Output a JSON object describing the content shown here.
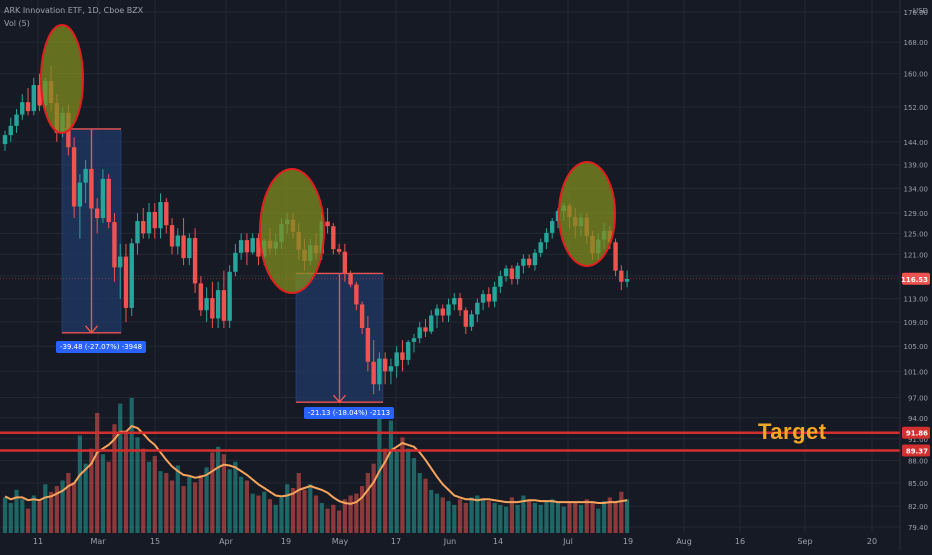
{
  "header": {
    "symbol_line": "ARK Innovation ETF, 1D, Cboe BZX",
    "indicator_line": "Vol (5)"
  },
  "colors": {
    "background": "#161a25",
    "grid": "#242833",
    "up": "#26a69a",
    "down": "#ef5350",
    "volume_ma": "#f7a45c",
    "target_line": "#d32f2f",
    "ellipse_fill": "#7f8e1e",
    "ellipse_stroke": "#e21f1f",
    "measure_fill": "#1f3a66",
    "label_bg": "#2962ff"
  },
  "chart_data": {
    "type": "candlestick",
    "currency": "USD",
    "price_scale": {
      "ticks": [
        79.4,
        82,
        85,
        88,
        91,
        94,
        97,
        101,
        105,
        109,
        113,
        117,
        121,
        125,
        129,
        134,
        139,
        144,
        152,
        160,
        168,
        176
      ],
      "tick_labels": [
        "79.40",
        "82.00",
        "85.00",
        "88.00",
        "91.00",
        "94.00",
        "97.00",
        "101.00",
        "105.00",
        "109.00",
        "113.00",
        "117.00",
        "121.00",
        "125.00",
        "129.00",
        "134.00",
        "139.00",
        "144.00",
        "152.00",
        "160.00",
        "168.00",
        "176.00"
      ],
      "axis_top_label": "USD",
      "log": true
    },
    "x_axis": {
      "labels": [
        "11",
        "Mar",
        "15",
        "Apr",
        "19",
        "May",
        "17",
        "Jun",
        "14",
        "Jul",
        "19",
        "Aug",
        "16",
        "Sep",
        "20"
      ]
    },
    "last_price": {
      "value": 116.53,
      "label": "116.53"
    },
    "horizontal_lines": [
      {
        "name": "target-line-1",
        "value": 91.86,
        "label": "91.86"
      },
      {
        "name": "target-line-2",
        "value": 89.37,
        "label": "89.37"
      }
    ],
    "annotation_text": "Target",
    "measurements": [
      {
        "from": 146.9,
        "to": 107.2,
        "label": "-39.48 (-27.07%) -3948"
      },
      {
        "from": 117.5,
        "to": 96.3,
        "label": "-21.13 (-18.04%) -2113"
      }
    ],
    "candles": [
      {
        "o": 143.5,
        "h": 146.5,
        "l": 142.0,
        "c": 145.5
      },
      {
        "o": 145.5,
        "h": 149.5,
        "l": 144.0,
        "c": 147.6
      },
      {
        "o": 147.6,
        "h": 151.5,
        "l": 146.0,
        "c": 150.2
      },
      {
        "o": 150.2,
        "h": 155.0,
        "l": 149.0,
        "c": 153.1
      },
      {
        "o": 153.1,
        "h": 156.5,
        "l": 150.0,
        "c": 151.0
      },
      {
        "o": 151.0,
        "h": 159.0,
        "l": 150.0,
        "c": 157.2
      },
      {
        "o": 157.2,
        "h": 160.0,
        "l": 151.0,
        "c": 152.3
      },
      {
        "o": 152.3,
        "h": 159.0,
        "l": 151.0,
        "c": 158.2
      },
      {
        "o": 158.2,
        "h": 162.0,
        "l": 151.0,
        "c": 152.9
      },
      {
        "o": 152.9,
        "h": 155.0,
        "l": 144.0,
        "c": 146.0
      },
      {
        "o": 146.0,
        "h": 152.0,
        "l": 145.0,
        "c": 150.6
      },
      {
        "o": 150.6,
        "h": 152.5,
        "l": 141.0,
        "c": 142.8
      },
      {
        "o": 142.8,
        "h": 145.0,
        "l": 128.0,
        "c": 130.3
      },
      {
        "o": 130.3,
        "h": 137.0,
        "l": 124.0,
        "c": 135.2
      },
      {
        "o": 135.2,
        "h": 140.0,
        "l": 131.0,
        "c": 138.1
      },
      {
        "o": 138.1,
        "h": 140.0,
        "l": 128.0,
        "c": 129.9
      },
      {
        "o": 129.9,
        "h": 132.0,
        "l": 125.0,
        "c": 128.0
      },
      {
        "o": 128.0,
        "h": 138.0,
        "l": 127.0,
        "c": 136.0
      },
      {
        "o": 136.0,
        "h": 137.0,
        "l": 126.0,
        "c": 127.2
      },
      {
        "o": 127.2,
        "h": 129.0,
        "l": 116.0,
        "c": 118.6
      },
      {
        "o": 118.6,
        "h": 123.0,
        "l": 113.0,
        "c": 120.6
      },
      {
        "o": 120.6,
        "h": 123.0,
        "l": 109.0,
        "c": 111.4
      },
      {
        "o": 111.4,
        "h": 124.0,
        "l": 110.0,
        "c": 123.1
      },
      {
        "o": 123.1,
        "h": 129.0,
        "l": 121.0,
        "c": 127.4
      },
      {
        "o": 127.4,
        "h": 130.0,
        "l": 124.0,
        "c": 125.0
      },
      {
        "o": 125.0,
        "h": 131.0,
        "l": 124.0,
        "c": 129.2
      },
      {
        "o": 129.2,
        "h": 131.0,
        "l": 124.0,
        "c": 126.0
      },
      {
        "o": 126.0,
        "h": 133.0,
        "l": 124.0,
        "c": 131.2
      },
      {
        "o": 131.2,
        "h": 132.0,
        "l": 125.0,
        "c": 126.6
      },
      {
        "o": 126.6,
        "h": 128.0,
        "l": 121.0,
        "c": 122.5
      },
      {
        "o": 122.5,
        "h": 126.0,
        "l": 121.0,
        "c": 124.6
      },
      {
        "o": 124.6,
        "h": 128.0,
        "l": 119.0,
        "c": 120.3
      },
      {
        "o": 120.3,
        "h": 125.0,
        "l": 119.0,
        "c": 124.1
      },
      {
        "o": 124.1,
        "h": 126.0,
        "l": 114.0,
        "c": 115.7
      },
      {
        "o": 115.7,
        "h": 117.0,
        "l": 110.0,
        "c": 111.0
      },
      {
        "o": 111.0,
        "h": 115.0,
        "l": 109.0,
        "c": 113.1
      },
      {
        "o": 113.1,
        "h": 116.0,
        "l": 108.0,
        "c": 109.6
      },
      {
        "o": 109.6,
        "h": 116.0,
        "l": 108.0,
        "c": 114.5
      },
      {
        "o": 114.5,
        "h": 118.0,
        "l": 108.0,
        "c": 109.2
      },
      {
        "o": 109.2,
        "h": 119.0,
        "l": 108.0,
        "c": 117.8
      },
      {
        "o": 117.8,
        "h": 123.0,
        "l": 117.0,
        "c": 121.3
      },
      {
        "o": 121.3,
        "h": 125.0,
        "l": 120.0,
        "c": 123.7
      },
      {
        "o": 123.7,
        "h": 125.0,
        "l": 119.0,
        "c": 121.4
      },
      {
        "o": 121.4,
        "h": 125.0,
        "l": 121.0,
        "c": 124.1
      },
      {
        "o": 124.1,
        "h": 125.0,
        "l": 119.0,
        "c": 120.6
      },
      {
        "o": 120.6,
        "h": 124.0,
        "l": 119.0,
        "c": 123.6
      },
      {
        "o": 123.6,
        "h": 126.0,
        "l": 121.0,
        "c": 122.1
      },
      {
        "o": 122.1,
        "h": 125.0,
        "l": 121.0,
        "c": 123.4
      },
      {
        "o": 123.4,
        "h": 128.0,
        "l": 122.0,
        "c": 126.8
      },
      {
        "o": 126.8,
        "h": 129.0,
        "l": 125.0,
        "c": 127.7
      },
      {
        "o": 127.7,
        "h": 129.0,
        "l": 124.0,
        "c": 125.3
      },
      {
        "o": 125.3,
        "h": 127.0,
        "l": 120.0,
        "c": 121.9
      },
      {
        "o": 121.9,
        "h": 124.0,
        "l": 118.0,
        "c": 119.8
      },
      {
        "o": 119.8,
        "h": 124.0,
        "l": 119.0,
        "c": 122.7
      },
      {
        "o": 122.7,
        "h": 125.0,
        "l": 120.0,
        "c": 121.2
      },
      {
        "o": 121.2,
        "h": 129.0,
        "l": 120.0,
        "c": 127.3
      },
      {
        "o": 127.3,
        "h": 130.0,
        "l": 125.0,
        "c": 126.4
      },
      {
        "o": 126.4,
        "h": 127.0,
        "l": 121.0,
        "c": 122.0
      },
      {
        "o": 122.0,
        "h": 123.0,
        "l": 121.0,
        "c": 121.5
      },
      {
        "o": 121.5,
        "h": 123.0,
        "l": 116.0,
        "c": 117.5
      },
      {
        "o": 117.5,
        "h": 118.0,
        "l": 115.0,
        "c": 115.5
      },
      {
        "o": 115.5,
        "h": 116.0,
        "l": 111.0,
        "c": 112.0
      },
      {
        "o": 112.0,
        "h": 112.5,
        "l": 107.0,
        "c": 108.0
      },
      {
        "o": 108.0,
        "h": 110.0,
        "l": 101.0,
        "c": 102.5
      },
      {
        "o": 102.5,
        "h": 106.0,
        "l": 97.5,
        "c": 99.0
      },
      {
        "o": 99.0,
        "h": 104.0,
        "l": 98.0,
        "c": 103.0
      },
      {
        "o": 103.0,
        "h": 104.0,
        "l": 99.0,
        "c": 101.0
      },
      {
        "o": 101.0,
        "h": 103.0,
        "l": 99.0,
        "c": 101.8
      },
      {
        "o": 101.8,
        "h": 105.0,
        "l": 100.0,
        "c": 104.0
      },
      {
        "o": 104.0,
        "h": 106.0,
        "l": 101.0,
        "c": 102.8
      },
      {
        "o": 102.8,
        "h": 106.0,
        "l": 102.0,
        "c": 105.7
      },
      {
        "o": 105.7,
        "h": 107.0,
        "l": 104.0,
        "c": 106.3
      },
      {
        "o": 106.3,
        "h": 109.0,
        "l": 105.5,
        "c": 108.1
      },
      {
        "o": 108.1,
        "h": 109.5,
        "l": 106.5,
        "c": 107.4
      },
      {
        "o": 107.4,
        "h": 111.0,
        "l": 107.0,
        "c": 110.1
      },
      {
        "o": 110.1,
        "h": 112.0,
        "l": 108.0,
        "c": 111.3
      },
      {
        "o": 111.3,
        "h": 112.0,
        "l": 109.0,
        "c": 110.1
      },
      {
        "o": 110.1,
        "h": 113.0,
        "l": 109.0,
        "c": 112.0
      },
      {
        "o": 112.0,
        "h": 114.0,
        "l": 111.0,
        "c": 113.1
      },
      {
        "o": 113.1,
        "h": 114.0,
        "l": 110.0,
        "c": 111.0
      },
      {
        "o": 111.0,
        "h": 111.5,
        "l": 107.0,
        "c": 108.2
      },
      {
        "o": 108.2,
        "h": 111.0,
        "l": 107.5,
        "c": 110.3
      },
      {
        "o": 110.3,
        "h": 113.0,
        "l": 109.0,
        "c": 112.3
      },
      {
        "o": 112.3,
        "h": 114.5,
        "l": 111.0,
        "c": 113.8
      },
      {
        "o": 113.8,
        "h": 115.0,
        "l": 111.5,
        "c": 112.5
      },
      {
        "o": 112.5,
        "h": 116.0,
        "l": 111.5,
        "c": 115.1
      },
      {
        "o": 115.1,
        "h": 118.0,
        "l": 114.0,
        "c": 117.0
      },
      {
        "o": 117.0,
        "h": 119.0,
        "l": 116.0,
        "c": 118.4
      },
      {
        "o": 118.4,
        "h": 119.0,
        "l": 115.5,
        "c": 116.5
      },
      {
        "o": 116.5,
        "h": 119.5,
        "l": 115.5,
        "c": 118.9
      },
      {
        "o": 118.9,
        "h": 121.0,
        "l": 117.5,
        "c": 120.2
      },
      {
        "o": 120.2,
        "h": 121.0,
        "l": 118.5,
        "c": 119.0
      },
      {
        "o": 119.0,
        "h": 122.0,
        "l": 118.0,
        "c": 121.3
      },
      {
        "o": 121.3,
        "h": 124.0,
        "l": 120.5,
        "c": 123.3
      },
      {
        "o": 123.3,
        "h": 126.0,
        "l": 122.0,
        "c": 125.1
      },
      {
        "o": 125.1,
        "h": 128.0,
        "l": 124.0,
        "c": 127.4
      },
      {
        "o": 127.4,
        "h": 130.0,
        "l": 126.0,
        "c": 129.4
      },
      {
        "o": 129.4,
        "h": 131.0,
        "l": 127.5,
        "c": 130.5
      },
      {
        "o": 130.5,
        "h": 131.0,
        "l": 126.0,
        "c": 128.2
      },
      {
        "o": 128.2,
        "h": 130.0,
        "l": 124.0,
        "c": 126.4
      },
      {
        "o": 126.4,
        "h": 129.0,
        "l": 124.5,
        "c": 128.1
      },
      {
        "o": 128.1,
        "h": 129.0,
        "l": 123.0,
        "c": 124.5
      },
      {
        "o": 124.5,
        "h": 125.5,
        "l": 120.0,
        "c": 121.2
      },
      {
        "o": 121.2,
        "h": 125.0,
        "l": 120.0,
        "c": 123.8
      },
      {
        "o": 123.8,
        "h": 127.0,
        "l": 122.0,
        "c": 125.5
      },
      {
        "o": 125.5,
        "h": 126.5,
        "l": 122.0,
        "c": 123.3
      },
      {
        "o": 123.3,
        "h": 124.0,
        "l": 117.0,
        "c": 118.0
      },
      {
        "o": 118.0,
        "h": 119.0,
        "l": 114.5,
        "c": 116.0
      },
      {
        "o": 116.0,
        "h": 118.0,
        "l": 115.0,
        "c": 116.5
      }
    ],
    "volume": {
      "label": "Vol (5)",
      "bars": [
        3.8,
        3.2,
        4.6,
        3.6,
        2.6,
        4.0,
        3.4,
        5.2,
        4.4,
        5.0,
        5.6,
        6.4,
        5.4,
        10.4,
        7.4,
        9.0,
        12.8,
        8.4,
        7.6,
        11.6,
        13.8,
        10.6,
        14.4,
        10.2,
        9.0,
        7.6,
        8.2,
        6.6,
        6.4,
        5.6,
        7.2,
        5.0,
        6.0,
        5.4,
        6.2,
        7.0,
        8.6,
        9.2,
        8.4,
        6.8,
        7.6,
        6.0,
        5.6,
        4.2,
        4.0,
        4.4,
        3.6,
        3.0,
        3.8,
        5.2,
        4.8,
        6.4,
        4.6,
        5.2,
        4.0,
        3.2,
        2.6,
        3.0,
        2.4,
        3.6,
        4.0,
        4.2,
        5.0,
        6.4,
        7.4,
        12.4,
        9.0,
        12.0,
        8.8,
        10.2,
        9.0,
        8.0,
        6.4,
        5.8,
        4.6,
        4.2,
        3.8,
        3.4,
        3.0,
        3.6,
        3.2,
        3.8,
        4.0,
        3.6,
        3.4,
        3.2,
        3.0,
        2.8,
        3.8,
        3.0,
        4.0,
        3.6,
        3.2,
        3.0,
        3.4,
        3.6,
        3.2,
        2.8,
        3.4,
        3.2,
        3.0,
        3.6,
        3.2,
        2.6,
        3.4,
        3.8,
        3.2,
        4.4,
        3.6
      ],
      "ma": [
        3.9,
        3.6,
        3.8,
        3.8,
        3.5,
        3.6,
        3.5,
        3.8,
        3.9,
        4.2,
        4.5,
        5.0,
        5.3,
        6.2,
        6.8,
        7.4,
        8.6,
        9.0,
        9.4,
        10.0,
        10.8,
        10.8,
        11.4,
        11.2,
        10.6,
        9.9,
        9.4,
        8.6,
        7.8,
        7.1,
        6.6,
        6.2,
        6.1,
        5.9,
        6.0,
        6.2,
        6.6,
        7.0,
        7.3,
        7.2,
        7.0,
        6.6,
        6.2,
        5.7,
        5.2,
        4.8,
        4.4,
        4.0,
        3.9,
        4.0,
        4.2,
        4.6,
        4.8,
        5.0,
        4.8,
        4.6,
        4.3,
        3.8,
        3.4,
        3.2,
        3.1,
        3.3,
        3.8,
        4.6,
        5.4,
        6.6,
        7.6,
        8.8,
        9.2,
        9.6,
        9.4,
        9.2,
        8.6,
        7.8,
        6.9,
        6.0,
        5.2,
        4.6,
        4.0,
        3.8,
        3.6,
        3.6,
        3.5,
        3.6,
        3.6,
        3.5,
        3.4,
        3.3,
        3.3,
        3.3,
        3.4,
        3.5,
        3.5,
        3.4,
        3.4,
        3.4,
        3.3,
        3.3,
        3.3,
        3.3,
        3.3,
        3.3,
        3.3,
        3.2,
        3.2,
        3.3,
        3.3,
        3.4,
        3.5
      ]
    }
  }
}
